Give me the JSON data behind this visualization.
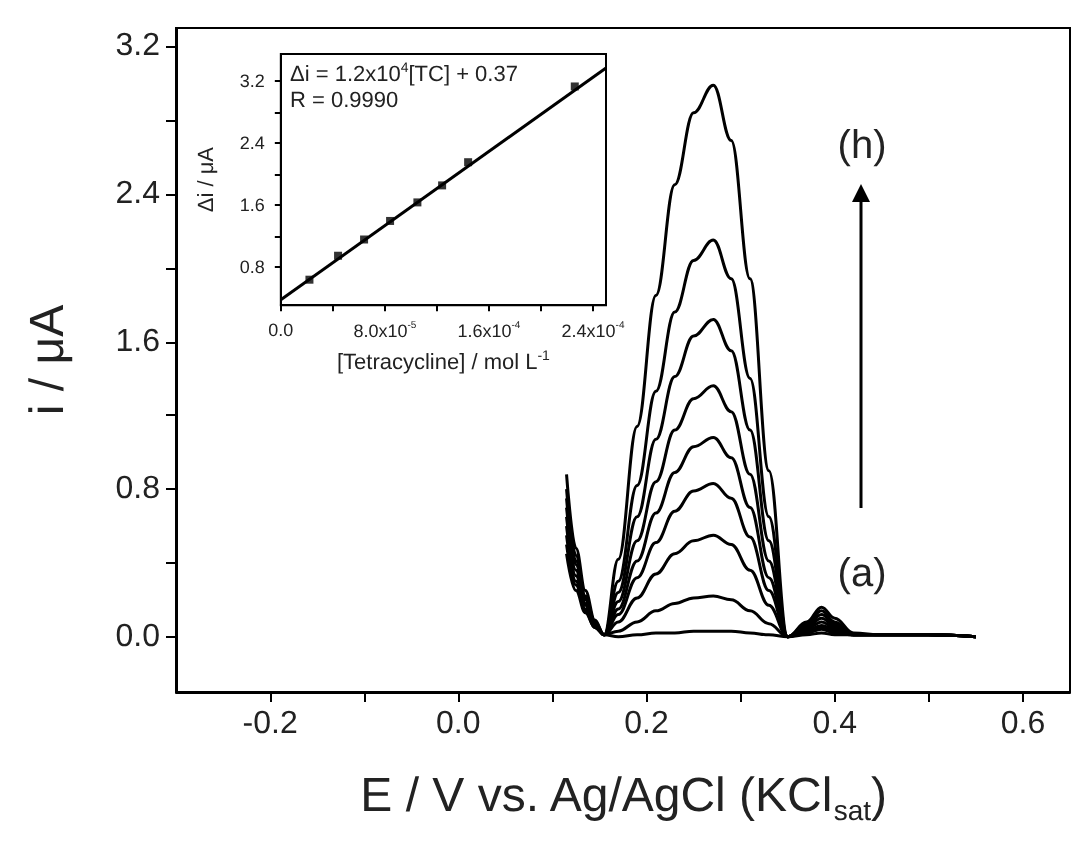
{
  "chart_data": [
    {
      "type": "line",
      "xlabel": "E / V vs. Ag/AgCl (KCl$_{sat}$)",
      "ylabel": "i / μA",
      "xlim": [
        -0.3,
        0.65
      ],
      "ylim": [
        -0.3,
        3.3
      ],
      "xticks": [
        -0.2,
        {
          "value": -0.1,
          "label": null
        },
        {
          "value": 0,
          "label": "0.0"
        },
        {
          "value": 0.1,
          "label": null
        },
        0.2,
        {
          "value": 0.3,
          "label": null
        },
        0.4,
        {
          "value": 0.5,
          "label": null
        },
        0.6
      ],
      "yticks": [
        {
          "value": 0,
          "label": "0.0"
        },
        {
          "value": 0.4,
          "label": null
        },
        0.8,
        {
          "value": 1.2,
          "label": null
        },
        1.6,
        {
          "value": 2.0,
          "label": null
        },
        2.4,
        {
          "value": 2.8,
          "label": null
        },
        3.2
      ],
      "x": [
        0.115,
        0.125,
        0.135,
        0.145,
        0.155,
        0.17,
        0.19,
        0.21,
        0.23,
        0.25,
        0.271,
        0.29,
        0.31,
        0.33,
        0.35,
        0.37,
        0.386,
        0.4,
        0.42,
        0.45,
        0.5,
        0.55
      ],
      "series": [
        {
          "color": "#000000",
          "values": [
            0.88,
            0.48,
            0.25,
            0.09,
            0.01,
            0.42,
            1.14,
            1.85,
            2.45,
            2.84,
            2.99,
            2.69,
            1.94,
            0.9,
            0,
            0.08,
            0.16,
            0.1,
            0.02,
            0.01,
            0.01,
            0
          ]
        },
        {
          "color": "#000000",
          "values": [
            0.8,
            0.44,
            0.22,
            0.08,
            0.01,
            0.3,
            0.82,
            1.33,
            1.76,
            2.04,
            2.15,
            1.94,
            1.4,
            0.65,
            0,
            0.07,
            0.14,
            0.08,
            0.01,
            0.01,
            0.01,
            0
          ]
        },
        {
          "color": "#000000",
          "values": [
            0.75,
            0.41,
            0.21,
            0.08,
            0.01,
            0.24,
            0.65,
            1.07,
            1.41,
            1.63,
            1.72,
            1.55,
            1.12,
            0.52,
            0,
            0.06,
            0.12,
            0.07,
            0.01,
            0.01,
            0.01,
            0
          ]
        },
        {
          "color": "#000000",
          "values": [
            0.7,
            0.39,
            0.2,
            0.07,
            0.01,
            0.19,
            0.52,
            0.84,
            1.12,
            1.29,
            1.36,
            1.22,
            0.88,
            0.41,
            0,
            0.05,
            0.1,
            0.06,
            0.01,
            0.01,
            0.01,
            0
          ]
        },
        {
          "color": "#000000",
          "values": [
            0.65,
            0.36,
            0.18,
            0.07,
            0.01,
            0.15,
            0.41,
            0.67,
            0.89,
            1.03,
            1.08,
            0.97,
            0.7,
            0.32,
            0,
            0.04,
            0.08,
            0.05,
            0.01,
            0.01,
            0.01,
            0
          ]
        },
        {
          "color": "#000000",
          "values": [
            0.6,
            0.33,
            0.17,
            0.06,
            0.01,
            0.12,
            0.32,
            0.51,
            0.68,
            0.79,
            0.83,
            0.75,
            0.54,
            0.25,
            0,
            0.03,
            0.06,
            0.04,
            0.01,
            0.01,
            0.01,
            0
          ]
        },
        {
          "color": "#000000",
          "values": [
            0.55,
            0.3,
            0.15,
            0.06,
            0.01,
            0.08,
            0.21,
            0.34,
            0.45,
            0.52,
            0.55,
            0.5,
            0.36,
            0.17,
            0,
            0.03,
            0.05,
            0.03,
            0.01,
            0.01,
            0.01,
            0
          ]
        },
        {
          "color": "#000000",
          "values": [
            0.5,
            0.28,
            0.14,
            0.05,
            0.01,
            0.03,
            0.08,
            0.14,
            0.18,
            0.21,
            0.22,
            0.2,
            0.14,
            0.07,
            0,
            0.02,
            0.04,
            0.02,
            0.01,
            0.01,
            0.01,
            0
          ]
        },
        {
          "color": "#000000",
          "values": [
            0.45,
            0.25,
            0.13,
            0.05,
            0.01,
            0.0,
            0.01,
            0.02,
            0.02,
            0.03,
            0.03,
            0.03,
            0.02,
            0.01,
            0,
            0.01,
            0.02,
            0.01,
            0.01,
            0.01,
            0.01,
            0
          ]
        }
      ],
      "annotations": [
        "(h)",
        "(a)"
      ]
    },
    {
      "type": "scatter",
      "xlabel": "[Tetracycline] / mol L$^{-1}$",
      "ylabel": "Δi / μA",
      "xlim": [
        0,
        0.00025
      ],
      "ylim": [
        0.3,
        3.55
      ],
      "xticks": [
        {
          "value": 0,
          "label": "0.0"
        },
        {
          "value": 4e-05,
          "label": null
        },
        {
          "value": 8e-05,
          "label": "8.0x10$^{-5}$"
        },
        {
          "value": 0.00012,
          "label": null
        },
        {
          "value": 0.00016,
          "label": "1.6x10$^{-4}$"
        },
        {
          "value": 0.0002,
          "label": null
        },
        {
          "value": 0.00024,
          "label": "2.4x10$^{-4}$"
        }
      ],
      "yticks": [
        0.8,
        {
          "value": 1.2,
          "label": null
        },
        1.6,
        {
          "value": 2.0,
          "label": null
        },
        2.4,
        {
          "value": 2.8,
          "label": null
        },
        3.2
      ],
      "series": [
        {
          "marker": "square",
          "color": "#000000",
          "x": [
            2.2e-05,
            4.4e-05,
            6.4e-05,
            8.4e-05,
            0.000105,
            0.000124,
            0.000144,
            0.000226
          ],
          "values": [
            0.63,
            0.94,
            1.15,
            1.39,
            1.63,
            1.85,
            2.15,
            3.13
          ]
        },
        {
          "type": "line",
          "color": "#000000",
          "x": [
            0,
            0.00025
          ],
          "values": [
            0.37,
            3.37
          ]
        }
      ],
      "annotations": [
        "Δi = 1.2x10$^{4}$[TC] + 0.37",
        "R = 0.9990"
      ]
    }
  ]
}
